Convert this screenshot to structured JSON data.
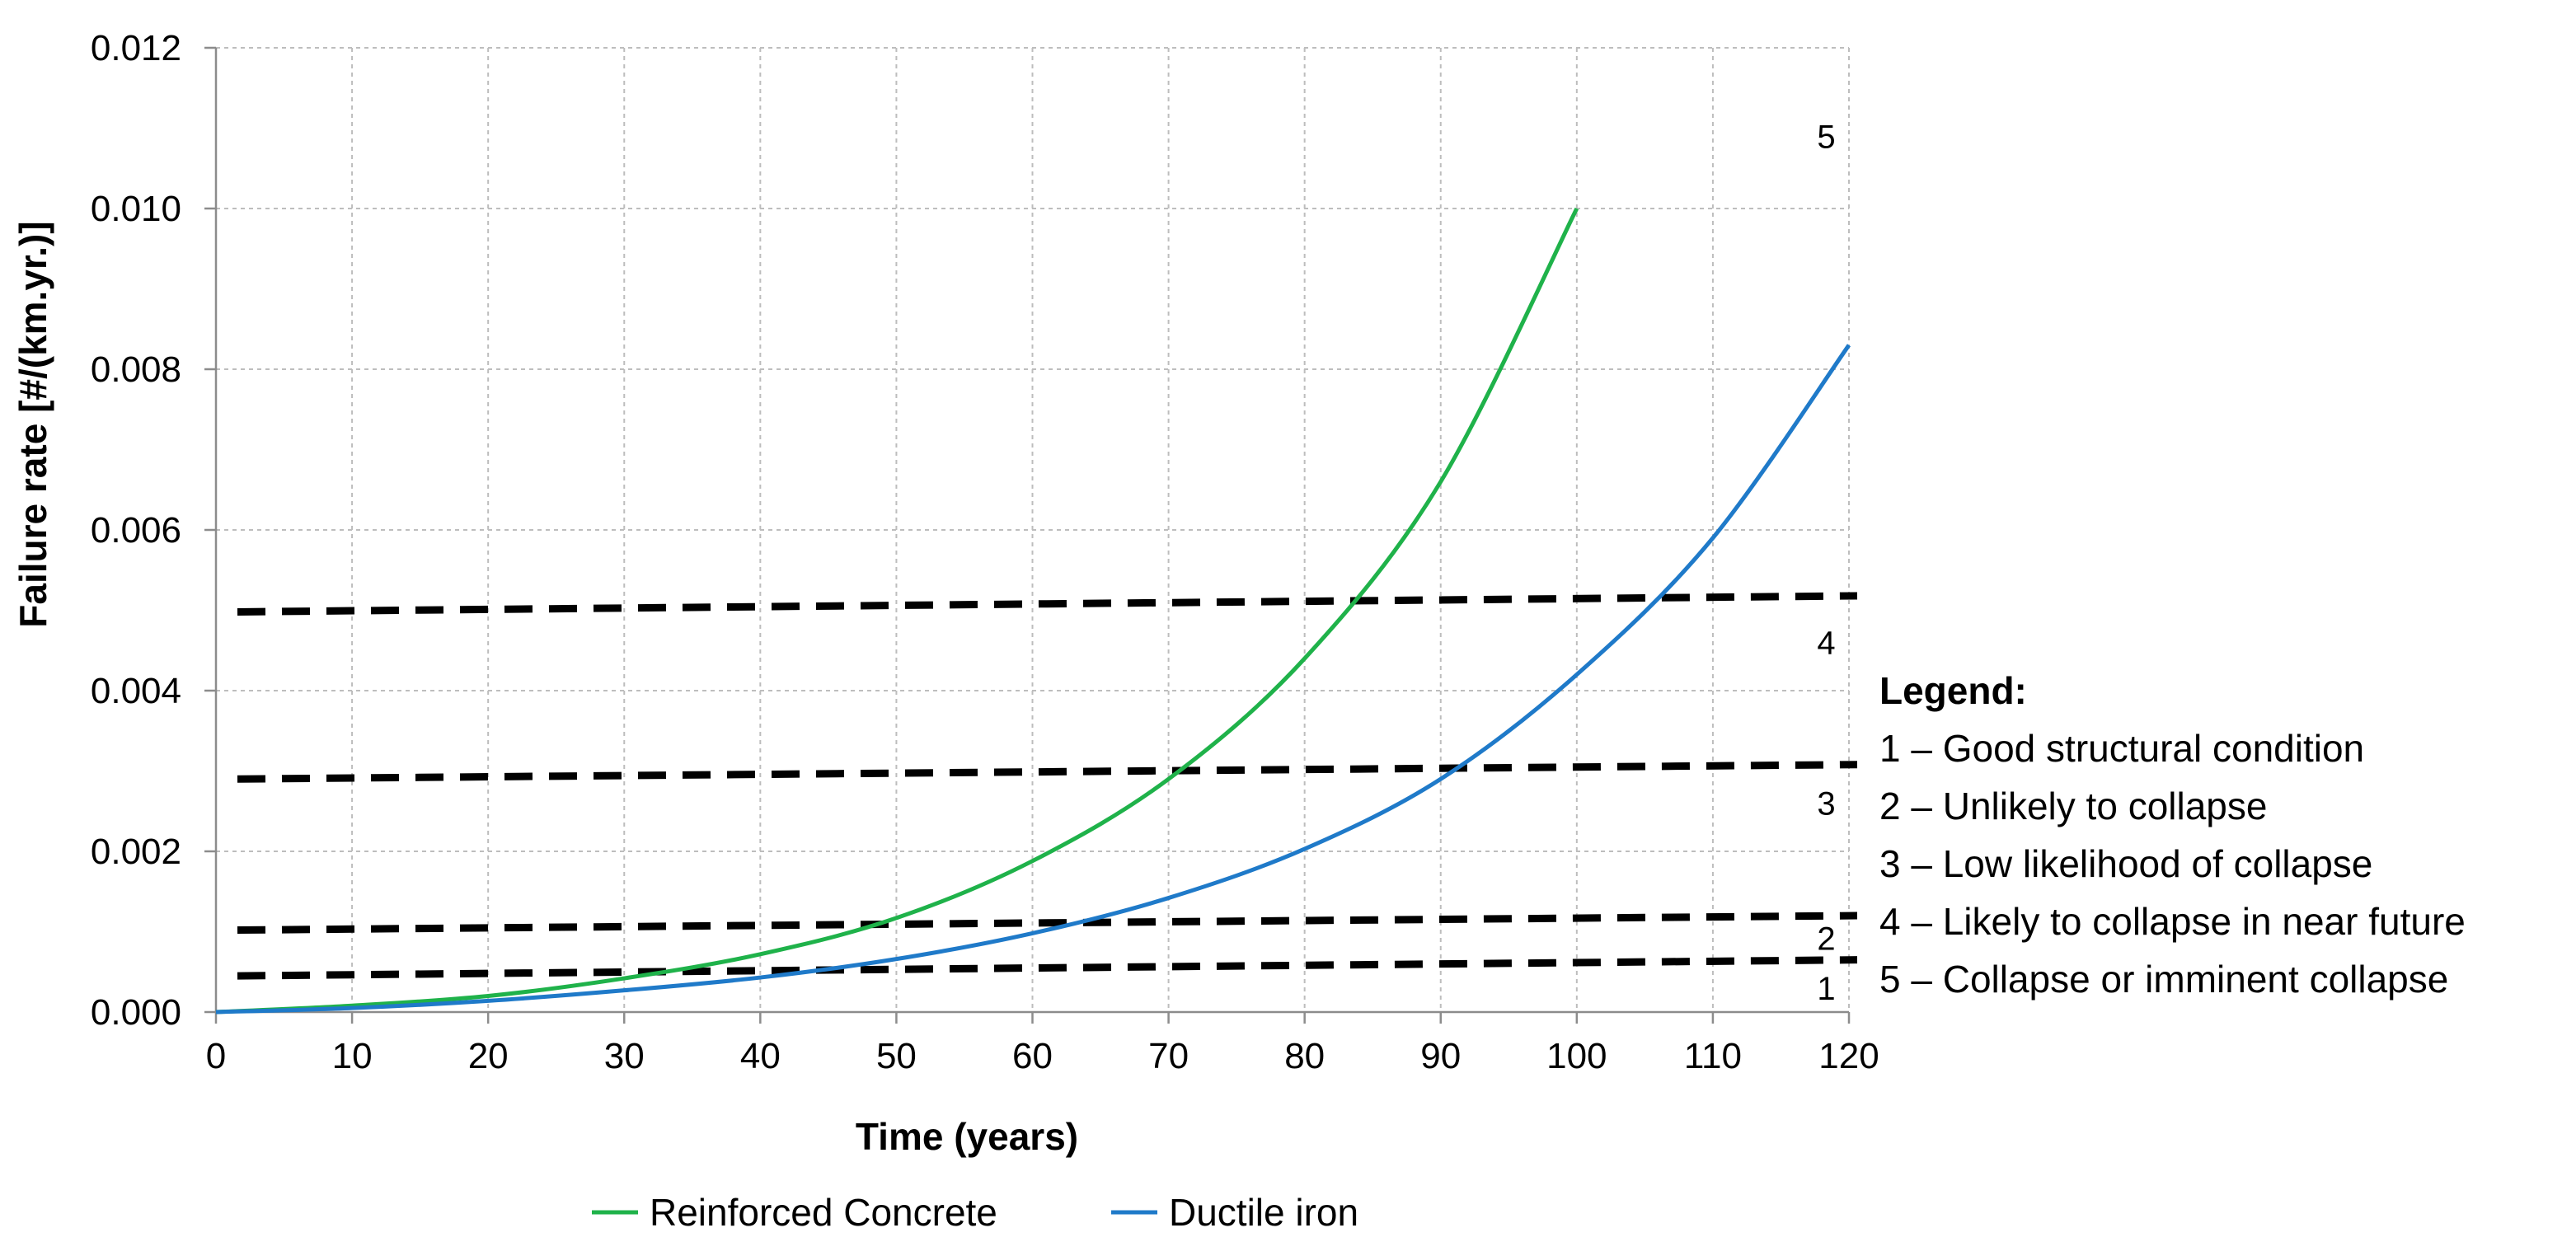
{
  "chart_data": {
    "type": "line",
    "title": "",
    "xlabel": "Time (years)",
    "ylabel": "Failure rate [#/(km.yr.)]",
    "xlim": [
      0,
      120
    ],
    "ylim": [
      0,
      0.012
    ],
    "x_ticks": [
      "0",
      "10",
      "20",
      "30",
      "40",
      "50",
      "60",
      "70",
      "80",
      "90",
      "100",
      "110",
      "120"
    ],
    "y_ticks": [
      "0.000",
      "0.002",
      "0.004",
      "0.006",
      "0.008",
      "0.010",
      "0.012"
    ],
    "grid": true,
    "x": [
      0,
      10,
      20,
      30,
      40,
      50,
      60,
      70,
      80,
      90,
      100,
      110,
      120
    ],
    "series": [
      {
        "name": "Reinforced Concrete",
        "color": "#1fb24a",
        "x": [
          0,
          10,
          20,
          30,
          40,
          50,
          60,
          70,
          80,
          90,
          100
        ],
        "values": [
          0,
          8e-05,
          0.0002,
          0.00042,
          0.00072,
          0.00117,
          0.00188,
          0.0029,
          0.0044,
          0.0066,
          0.01
        ]
      },
      {
        "name": "Ductile iron",
        "color": "#1f7ac9",
        "x": [
          0,
          10,
          20,
          30,
          40,
          50,
          60,
          70,
          80,
          90,
          100,
          110,
          120
        ],
        "values": [
          0,
          5e-05,
          0.00014,
          0.00027,
          0.00043,
          0.00066,
          0.00098,
          0.00142,
          0.00203,
          0.0029,
          0.0042,
          0.0059,
          0.0083
        ]
      }
    ],
    "thresholds": [
      {
        "name": "threshold-1-2",
        "x": [
          0,
          120
        ],
        "values": [
          0.00045,
          0.00065
        ]
      },
      {
        "name": "threshold-2-3",
        "x": [
          0,
          120
        ],
        "values": [
          0.00102,
          0.0012
        ]
      },
      {
        "name": "threshold-3-4",
        "x": [
          0,
          120
        ],
        "values": [
          0.0029,
          0.00308
        ]
      },
      {
        "name": "threshold-4-5",
        "x": [
          0,
          120
        ],
        "values": [
          0.00498,
          0.00518
        ]
      }
    ],
    "zone_labels": [
      {
        "text": "1",
        "x": 117,
        "y": 0.0003
      },
      {
        "text": "2",
        "x": 117,
        "y": 0.00092
      },
      {
        "text": "3",
        "x": 117,
        "y": 0.0026
      },
      {
        "text": "4",
        "x": 117,
        "y": 0.0046
      },
      {
        "text": "5",
        "x": 117,
        "y": 0.0109
      }
    ],
    "legend": {
      "placement": "bottom",
      "entries": [
        "Reinforced Concrete",
        "Ductile iron"
      ]
    },
    "condition_legend": {
      "title": "Legend:",
      "items": [
        "1 – Good structural condition",
        "2 – Unlikely to collapse",
        "3 – Low likelihood of collapse",
        "4 – Likely to collapse in near future",
        "5 – Collapse or imminent collapse"
      ]
    },
    "colors": {
      "threshold": "#000000",
      "grid": "#bdbdbd",
      "axis": "#8c8c8c"
    }
  }
}
